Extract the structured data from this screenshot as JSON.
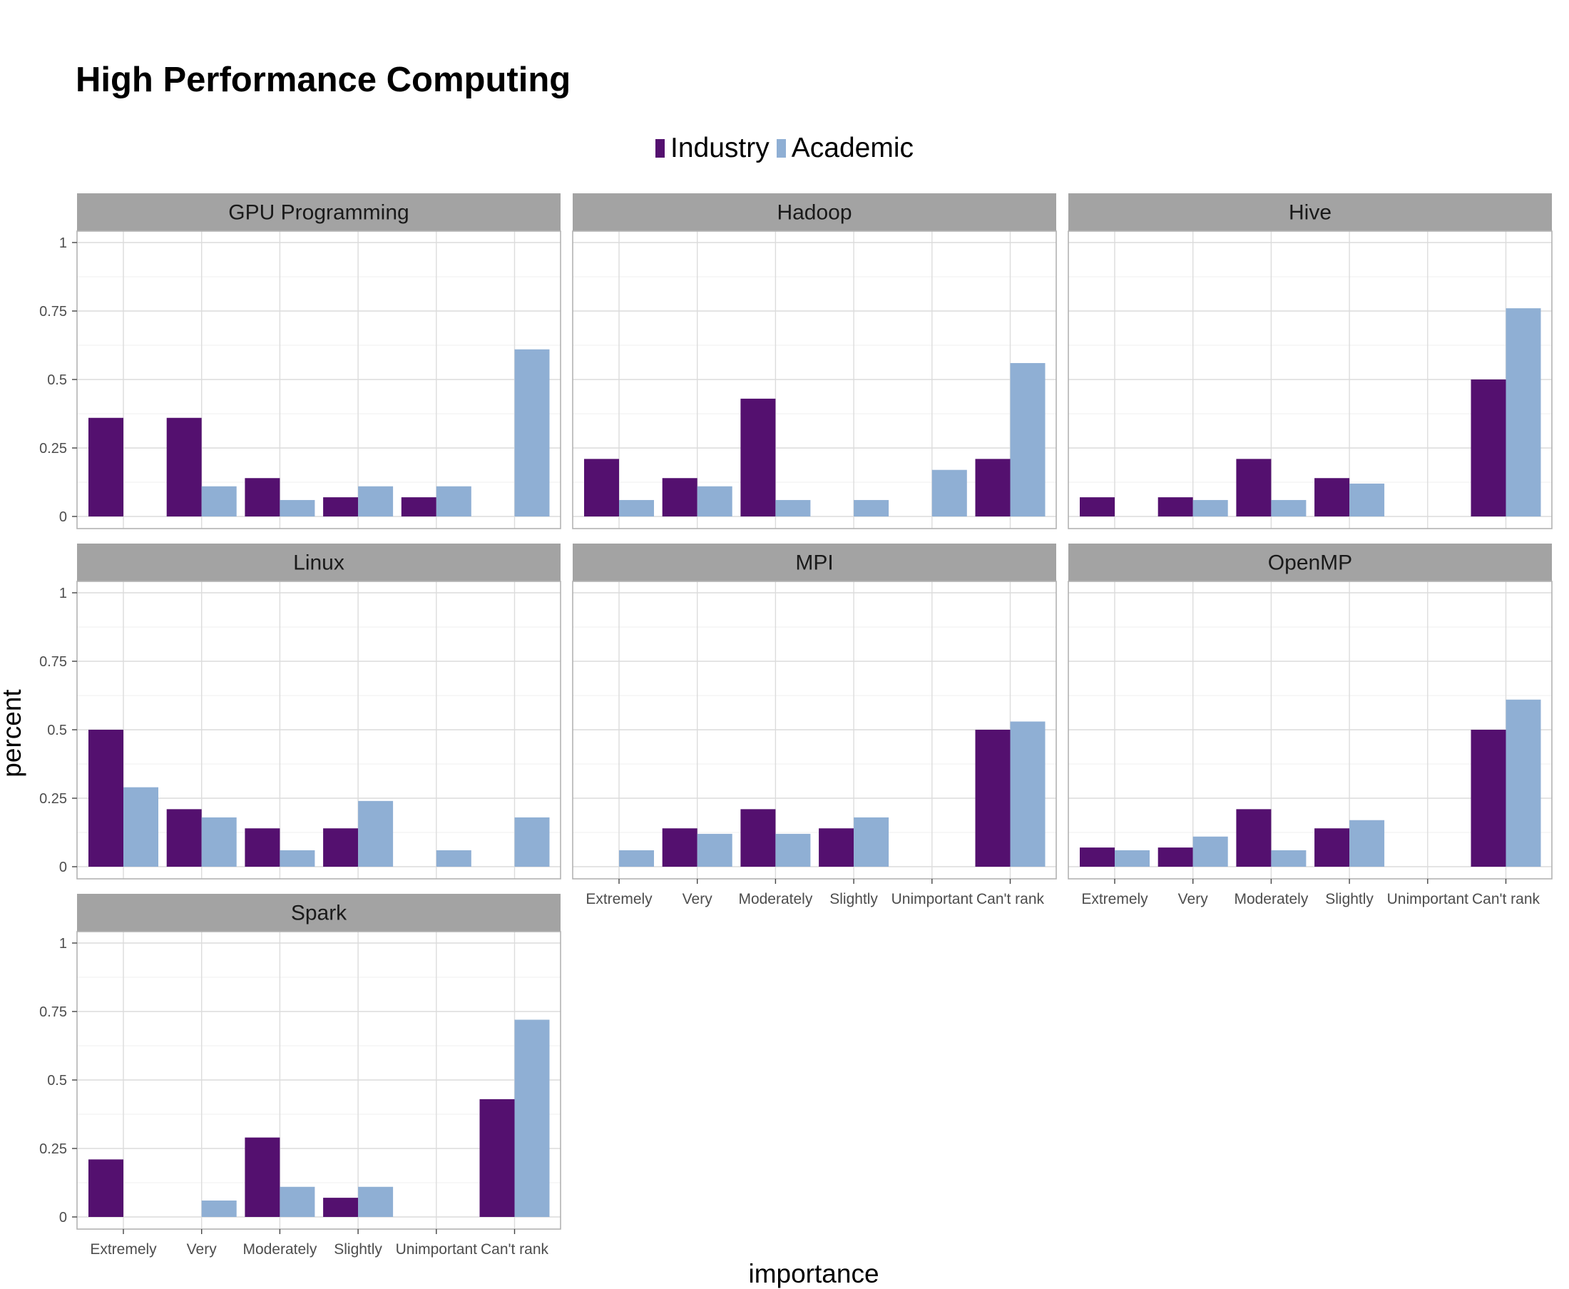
{
  "chart_data": {
    "type": "bar",
    "title": "High Performance Computing",
    "xlabel": "importance",
    "ylabel": "percent",
    "ylim": [
      0,
      1.05
    ],
    "yticks": [
      "0",
      "0.25",
      "0.5",
      "0.75",
      "1"
    ],
    "ytick_values": [
      0,
      0.25,
      0.5,
      0.75,
      1
    ],
    "categories": [
      "Extremely",
      "Very",
      "Moderately",
      "Slightly",
      "Unimportant",
      "Can't rank"
    ],
    "grid": true,
    "legend_position": "top",
    "series_meta": [
      {
        "name": "Industry",
        "color": "#54106f"
      },
      {
        "name": "Academic",
        "color": "#8fafd4"
      }
    ],
    "facets": [
      {
        "name": "GPU Programming",
        "series": [
          {
            "name": "Industry",
            "values": [
              0.36,
              0.36,
              0.14,
              0.07,
              0.07,
              0
            ]
          },
          {
            "name": "Academic",
            "values": [
              0,
              0.11,
              0.06,
              0.11,
              0.11,
              0.61
            ]
          }
        ]
      },
      {
        "name": "Hadoop",
        "series": [
          {
            "name": "Industry",
            "values": [
              0.21,
              0.14,
              0.43,
              0,
              0,
              0.21
            ]
          },
          {
            "name": "Academic",
            "values": [
              0.06,
              0.11,
              0.06,
              0.06,
              0.17,
              0.56
            ]
          }
        ]
      },
      {
        "name": "Hive",
        "series": [
          {
            "name": "Industry",
            "values": [
              0.07,
              0.07,
              0.21,
              0.14,
              0,
              0.5
            ]
          },
          {
            "name": "Academic",
            "values": [
              0,
              0.06,
              0.06,
              0.12,
              0,
              0.76
            ]
          }
        ]
      },
      {
        "name": "Linux",
        "series": [
          {
            "name": "Industry",
            "values": [
              0.5,
              0.21,
              0.14,
              0.14,
              0,
              0
            ]
          },
          {
            "name": "Academic",
            "values": [
              0.29,
              0.18,
              0.06,
              0.24,
              0.06,
              0.18
            ]
          }
        ]
      },
      {
        "name": "MPI",
        "series": [
          {
            "name": "Industry",
            "values": [
              0,
              0.14,
              0.21,
              0.14,
              0,
              0.5
            ]
          },
          {
            "name": "Academic",
            "values": [
              0.06,
              0.12,
              0.12,
              0.18,
              0,
              0.53
            ]
          }
        ]
      },
      {
        "name": "OpenMP",
        "series": [
          {
            "name": "Industry",
            "values": [
              0.07,
              0.07,
              0.21,
              0.14,
              0,
              0.5
            ]
          },
          {
            "name": "Academic",
            "values": [
              0.06,
              0.11,
              0.06,
              0.17,
              0,
              0.61
            ]
          }
        ]
      },
      {
        "name": "Spark",
        "series": [
          {
            "name": "Industry",
            "values": [
              0.21,
              0,
              0.29,
              0.07,
              0,
              0.43
            ]
          },
          {
            "name": "Academic",
            "values": [
              0,
              0.06,
              0.11,
              0.11,
              0,
              0.72
            ]
          }
        ]
      }
    ]
  }
}
